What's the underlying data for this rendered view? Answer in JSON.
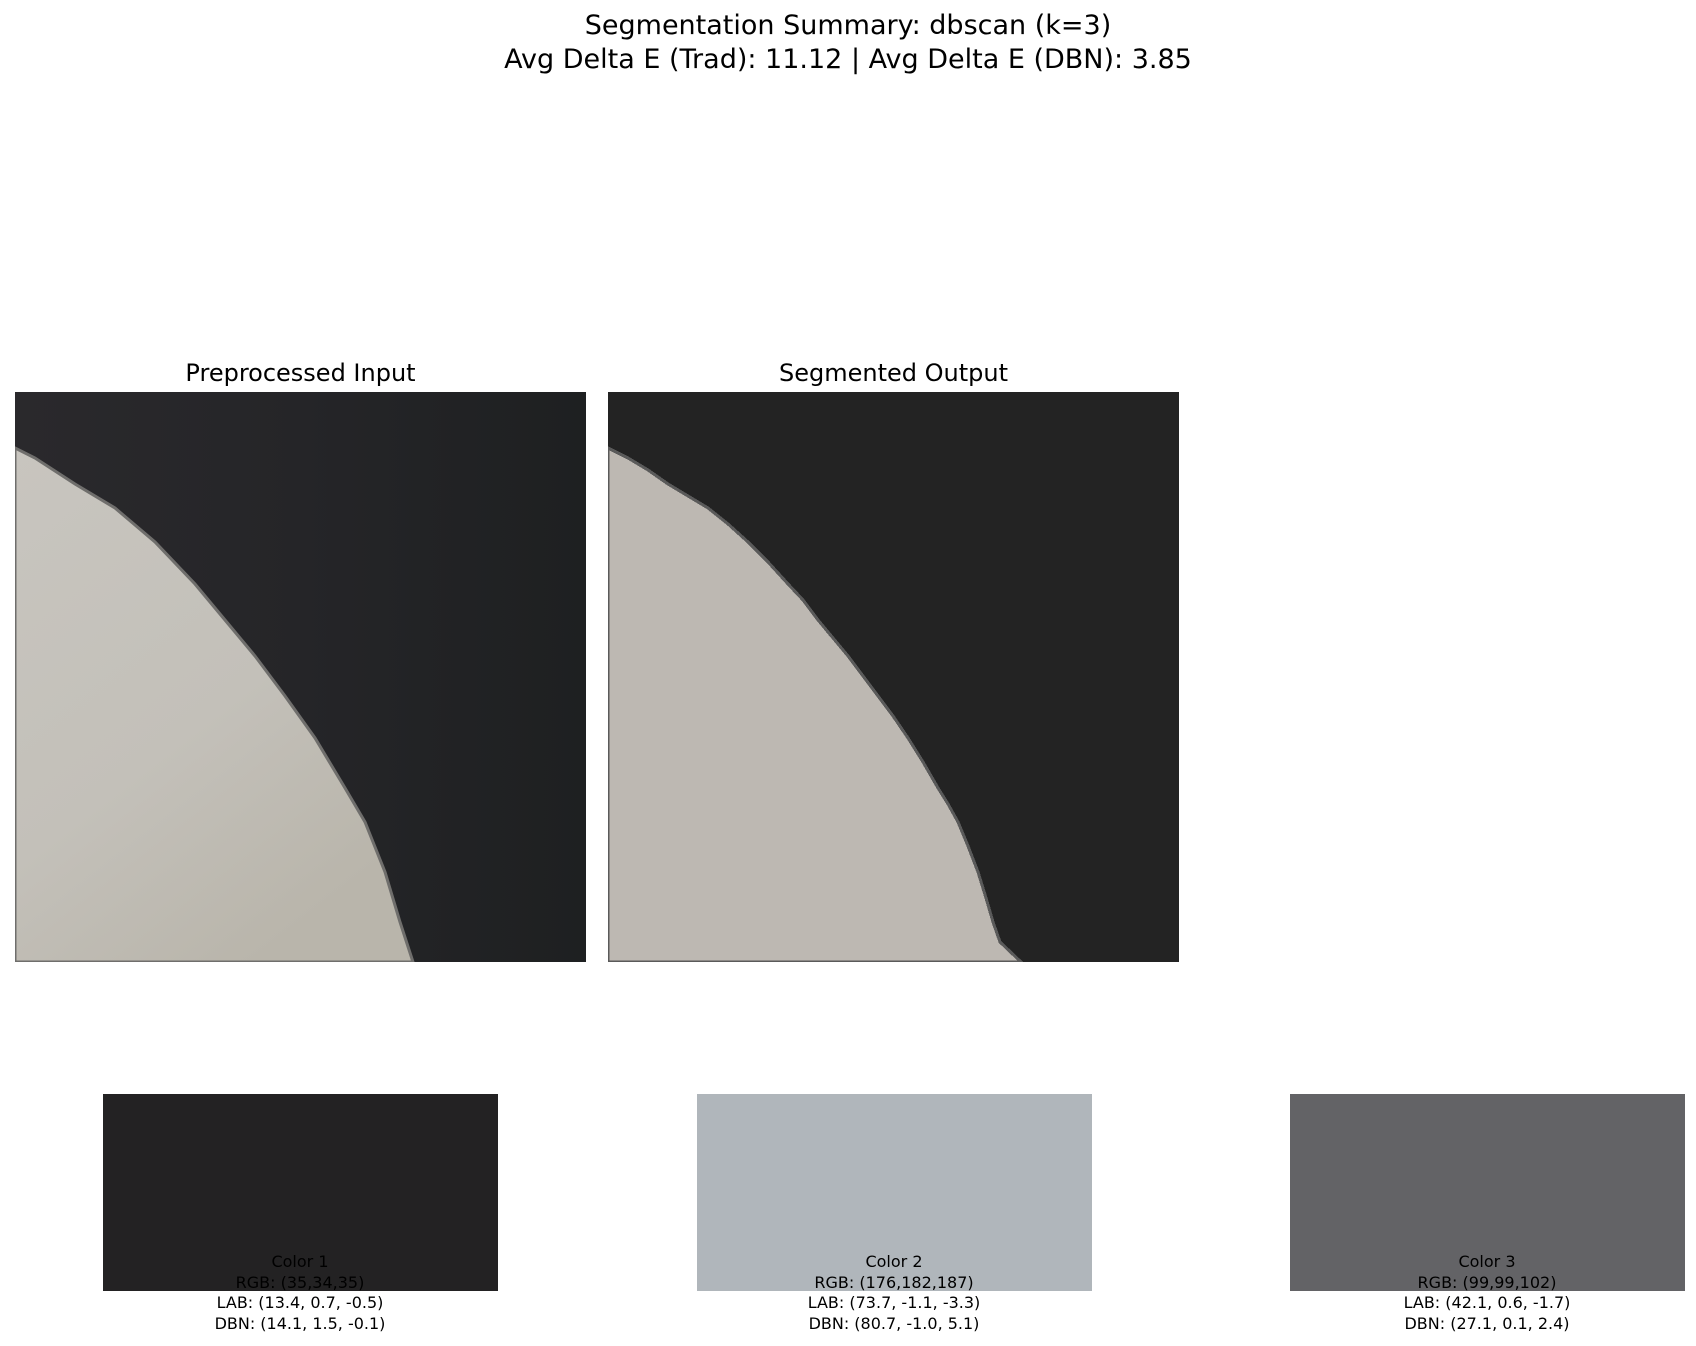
{
  "summary": {
    "title_line1": "Segmentation Summary: dbscan (k=3)",
    "title_line2": "Avg Delta E (Trad): 11.12 | Avg Delta E (DBN): 3.85"
  },
  "panels": {
    "input_title": "Preprocessed Input",
    "output_title": "Segmented Output"
  },
  "palette": [
    {
      "name": "Color 1",
      "rgb": "RGB: (35,34,35)",
      "lab": "LAB: (13.4, 0.7, -0.5)",
      "dbn": "DBN: (14.1, 1.5, -0.1)",
      "hex": "#232223"
    },
    {
      "name": "Color 2",
      "rgb": "RGB: (176,182,187)",
      "lab": "LAB: (73.7, -1.1, -3.3)",
      "dbn": "DBN: (80.7, -1.0, 5.1)",
      "hex": "#b0b6bb"
    },
    {
      "name": "Color 3",
      "rgb": "RGB: (99,99,102)",
      "lab": "LAB: (42.1, 0.6, -1.7)",
      "dbn": "DBN: (27.1, 0.1, 2.4)",
      "hex": "#636366"
    }
  ],
  "image_colors": {
    "dark_background": "#232323",
    "input_dark": "#252527",
    "input_light": "#c4c1ba",
    "output_light": "#bdb8b2"
  }
}
